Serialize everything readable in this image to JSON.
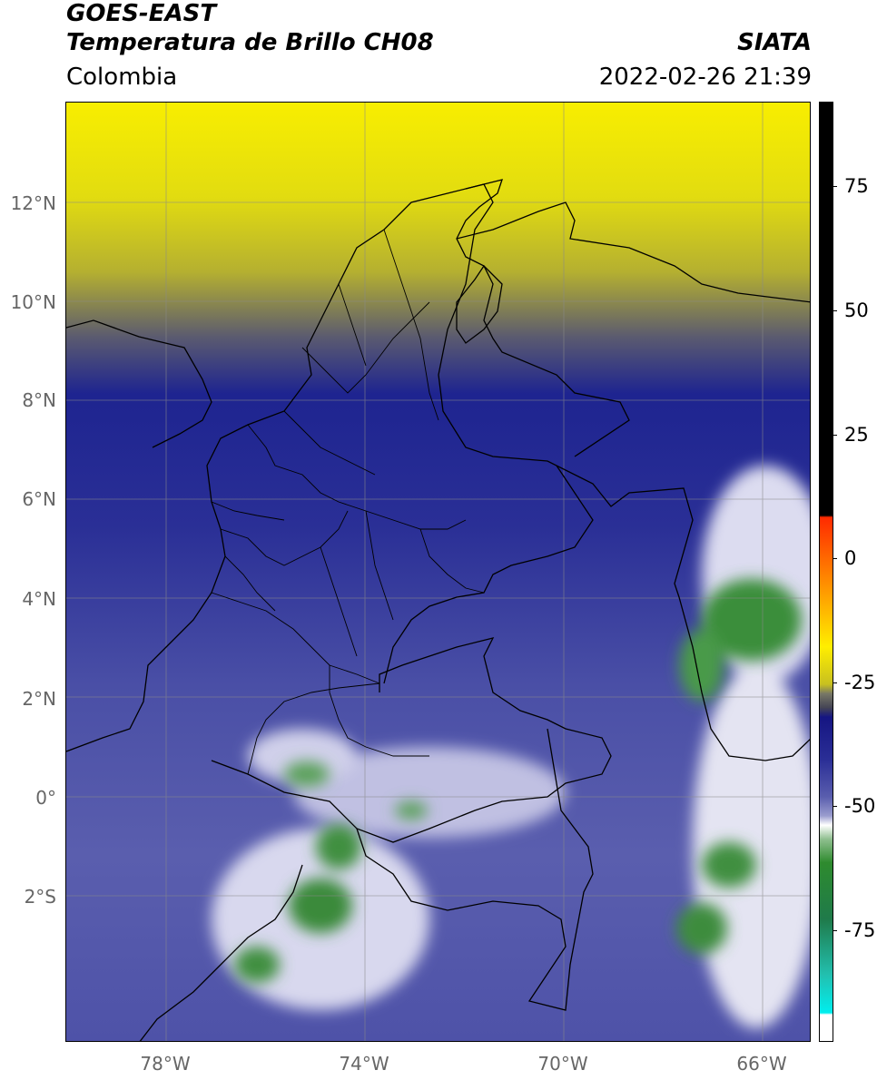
{
  "header": {
    "line1": "GOES-EAST",
    "line2": "Temperatura de Brillo CH08",
    "agency": "SIATA",
    "region": "Colombia",
    "timestamp": "2022-02-26 21:39"
  },
  "axes": {
    "lat_labels": [
      "12°N",
      "10°N",
      "8°N",
      "6°N",
      "4°N",
      "2°N",
      "0°",
      "2°S"
    ],
    "lon_labels": [
      "78°W",
      "74°W",
      "70°W",
      "66°W"
    ]
  },
  "colorbar": {
    "ticks": [
      "75",
      "50",
      "25",
      "0",
      "-25",
      "-50",
      "-75"
    ],
    "colors": [
      "#ffffff",
      "#00e5ee",
      "#228b22",
      "#ffffff",
      "#1a1a8c",
      "#ffee00",
      "#ff4500",
      "#000000"
    ]
  }
}
